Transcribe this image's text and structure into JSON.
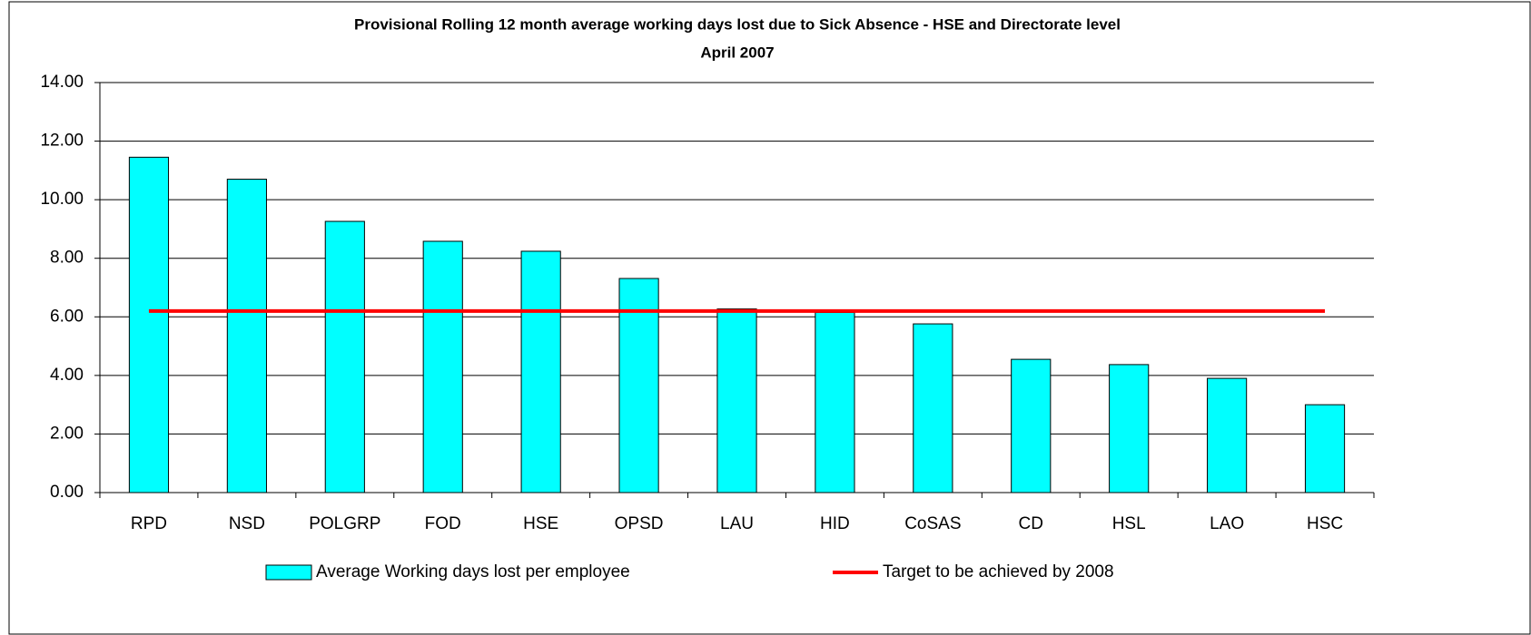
{
  "chart_data": {
    "type": "bar",
    "title": "Provisional Rolling 12 month average working days lost due to Sick Absence - HSE and Directorate level",
    "subtitle": "April 2007",
    "categories": [
      "RPD",
      "NSD",
      "POLGRP",
      "FOD",
      "HSE",
      "OPSD",
      "LAU",
      "HID",
      "CoSAS",
      "CD",
      "HSL",
      "LAO",
      "HSC"
    ],
    "series": [
      {
        "name": "Average Working days lost per employee",
        "type": "bar",
        "color": "#00ffff",
        "values": [
          11.45,
          10.7,
          9.26,
          8.58,
          8.24,
          7.31,
          6.27,
          6.15,
          5.76,
          4.55,
          4.37,
          3.9,
          3.0
        ]
      },
      {
        "name": "Target to be achieved by 2008",
        "type": "line",
        "color": "#ff0000",
        "values": [
          6.2,
          6.2,
          6.2,
          6.2,
          6.2,
          6.2,
          6.2,
          6.2,
          6.2,
          6.2,
          6.2,
          6.2,
          6.2
        ]
      }
    ],
    "ylim": [
      0,
      14
    ],
    "yticks": [
      {
        "value": 0,
        "label": "0.00"
      },
      {
        "value": 2,
        "label": "2.00"
      },
      {
        "value": 4,
        "label": "4.00"
      },
      {
        "value": 6,
        "label": "6.00"
      },
      {
        "value": 8,
        "label": "8.00"
      },
      {
        "value": 10,
        "label": "10.00"
      },
      {
        "value": 12,
        "label": "12.00"
      },
      {
        "value": 14,
        "label": "14.00"
      }
    ],
    "grid": true
  }
}
